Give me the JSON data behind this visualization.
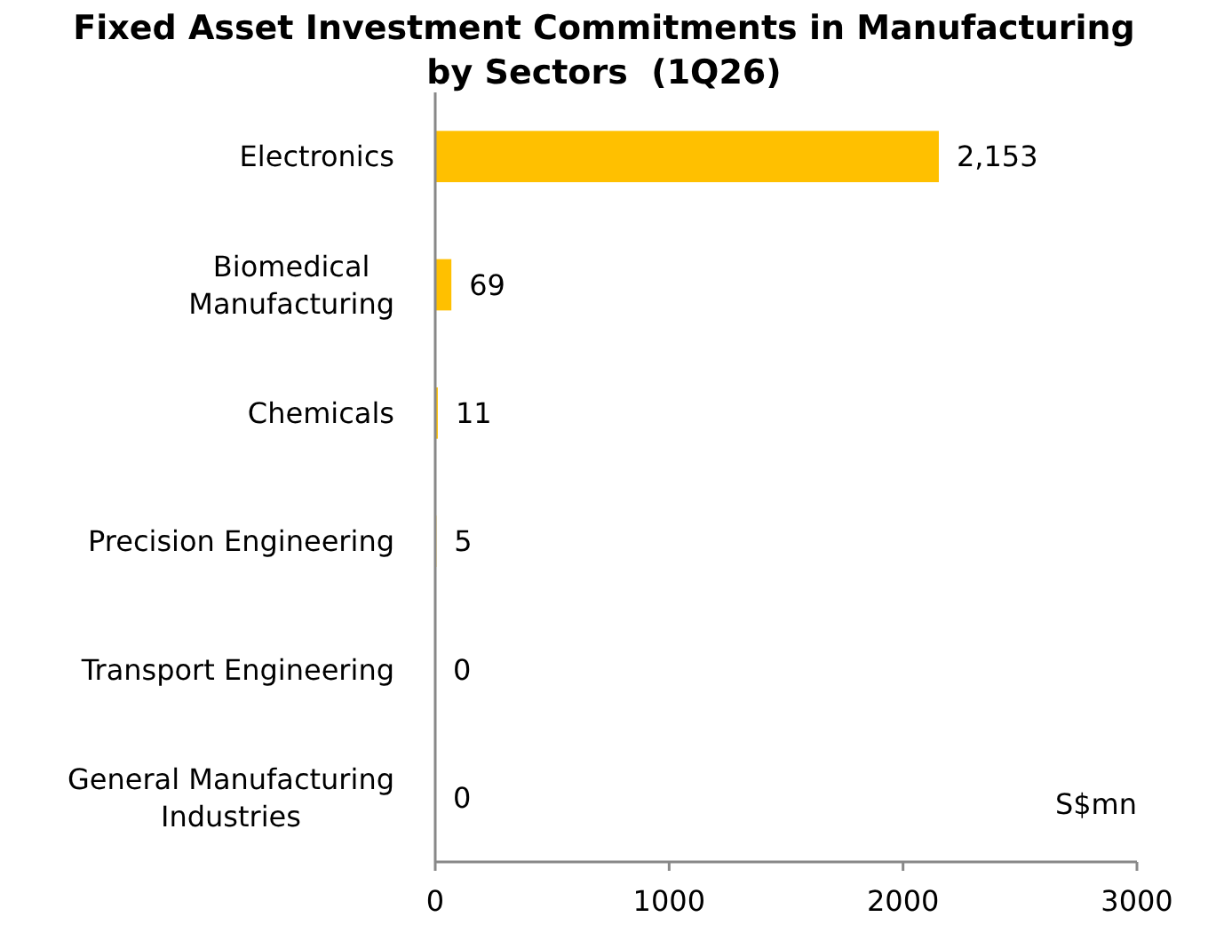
{
  "chart_data": {
    "type": "bar",
    "orientation": "horizontal",
    "title": "Fixed Asset Investment Commitments in Manufacturing by Sectors  (1Q26)",
    "categories": [
      "Electronics",
      "Biomedical Manufacturing",
      "Chemicals",
      "Precision Engineering",
      "Transport Engineering",
      "General Manufacturing Industries"
    ],
    "values": [
      2153,
      69,
      11,
      5,
      0,
      0
    ],
    "value_labels": [
      "2,153",
      "69",
      "11",
      "5",
      "0",
      "0"
    ],
    "color": "#ffc000",
    "xlim": [
      0,
      3000
    ],
    "xticks": [
      0,
      1000,
      2000,
      3000
    ],
    "annotations": [
      "S$mn"
    ]
  }
}
